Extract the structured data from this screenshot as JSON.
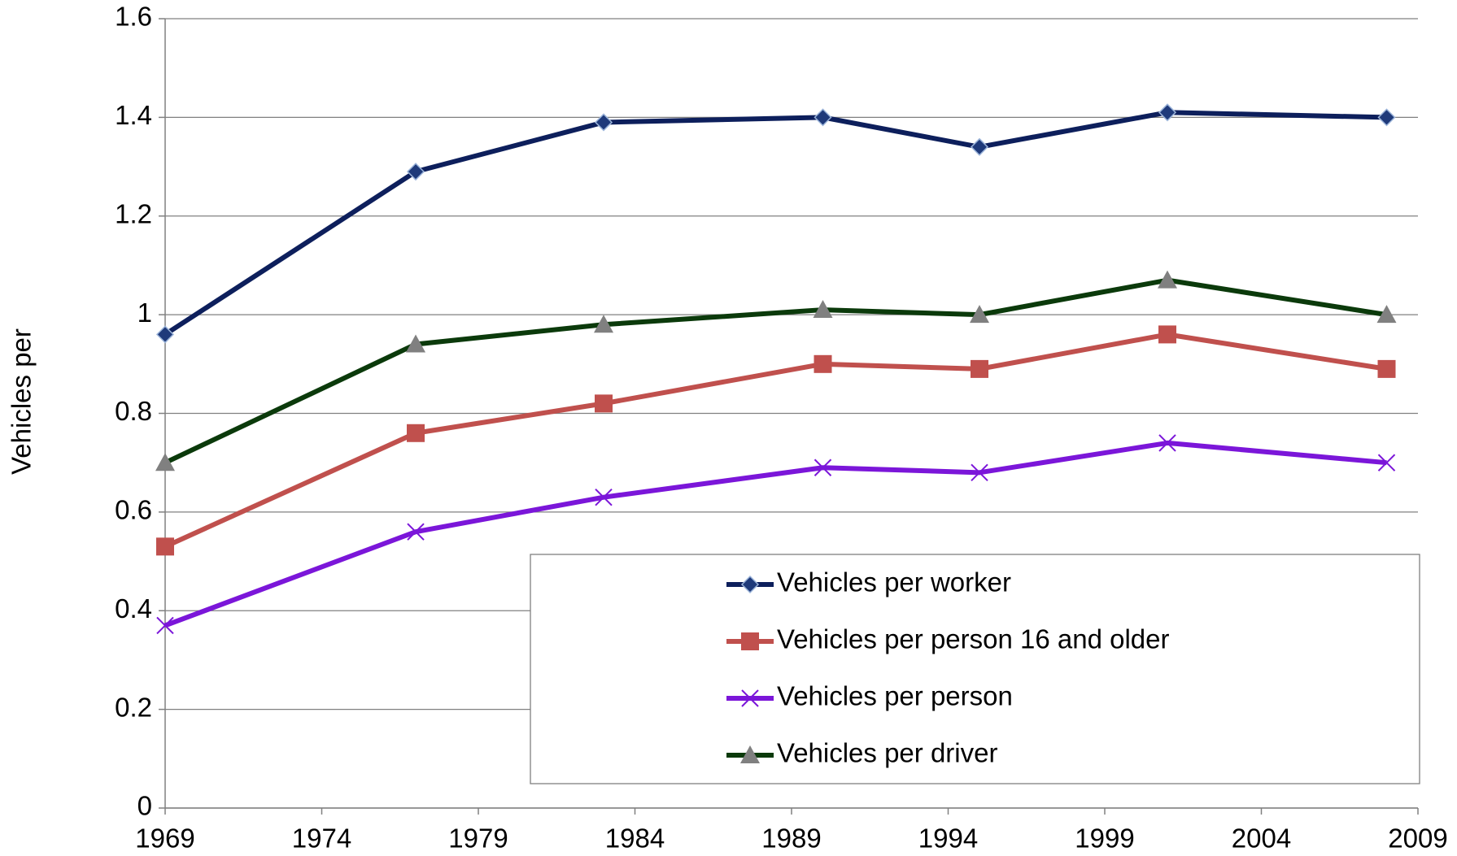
{
  "chart_data": {
    "type": "line",
    "y_label": "Vehicles per",
    "x": [
      1969,
      1977,
      1983,
      1990,
      1995,
      2001,
      2008
    ],
    "series": [
      {
        "name": "Vehicles per worker",
        "color": "#0d1f5c",
        "marker": "diamond",
        "marker_color": "#1f3a7a",
        "values": [
          0.96,
          1.29,
          1.39,
          1.4,
          1.34,
          1.41,
          1.4
        ]
      },
      {
        "name": "Vehicles per person 16 and older",
        "color": "#c0504d",
        "marker": "square",
        "marker_color": "#c0504d",
        "values": [
          0.53,
          0.76,
          0.82,
          0.9,
          0.89,
          0.96,
          0.89
        ]
      },
      {
        "name": "Vehicles per person",
        "color": "#7b16d9",
        "marker": "x",
        "marker_color": "#7b16d9",
        "values": [
          0.37,
          0.56,
          0.63,
          0.69,
          0.68,
          0.74,
          0.7
        ]
      },
      {
        "name": "Vehicles per driver",
        "color": "#0b3a0b",
        "marker": "triangle",
        "marker_color": "#808080",
        "values": [
          0.7,
          0.94,
          0.98,
          1.01,
          1.0,
          1.07,
          1.0
        ]
      }
    ],
    "xlim": [
      1969,
      2009
    ],
    "xticks": [
      1969,
      1974,
      1979,
      1984,
      1989,
      1994,
      1999,
      2004,
      2009
    ],
    "ylim": [
      0,
      1.6
    ],
    "yticks": [
      0,
      0.2,
      0.4,
      0.6,
      0.8,
      1,
      1.2,
      1.4,
      1.6
    ],
    "grid": true,
    "legend": "lower right"
  }
}
